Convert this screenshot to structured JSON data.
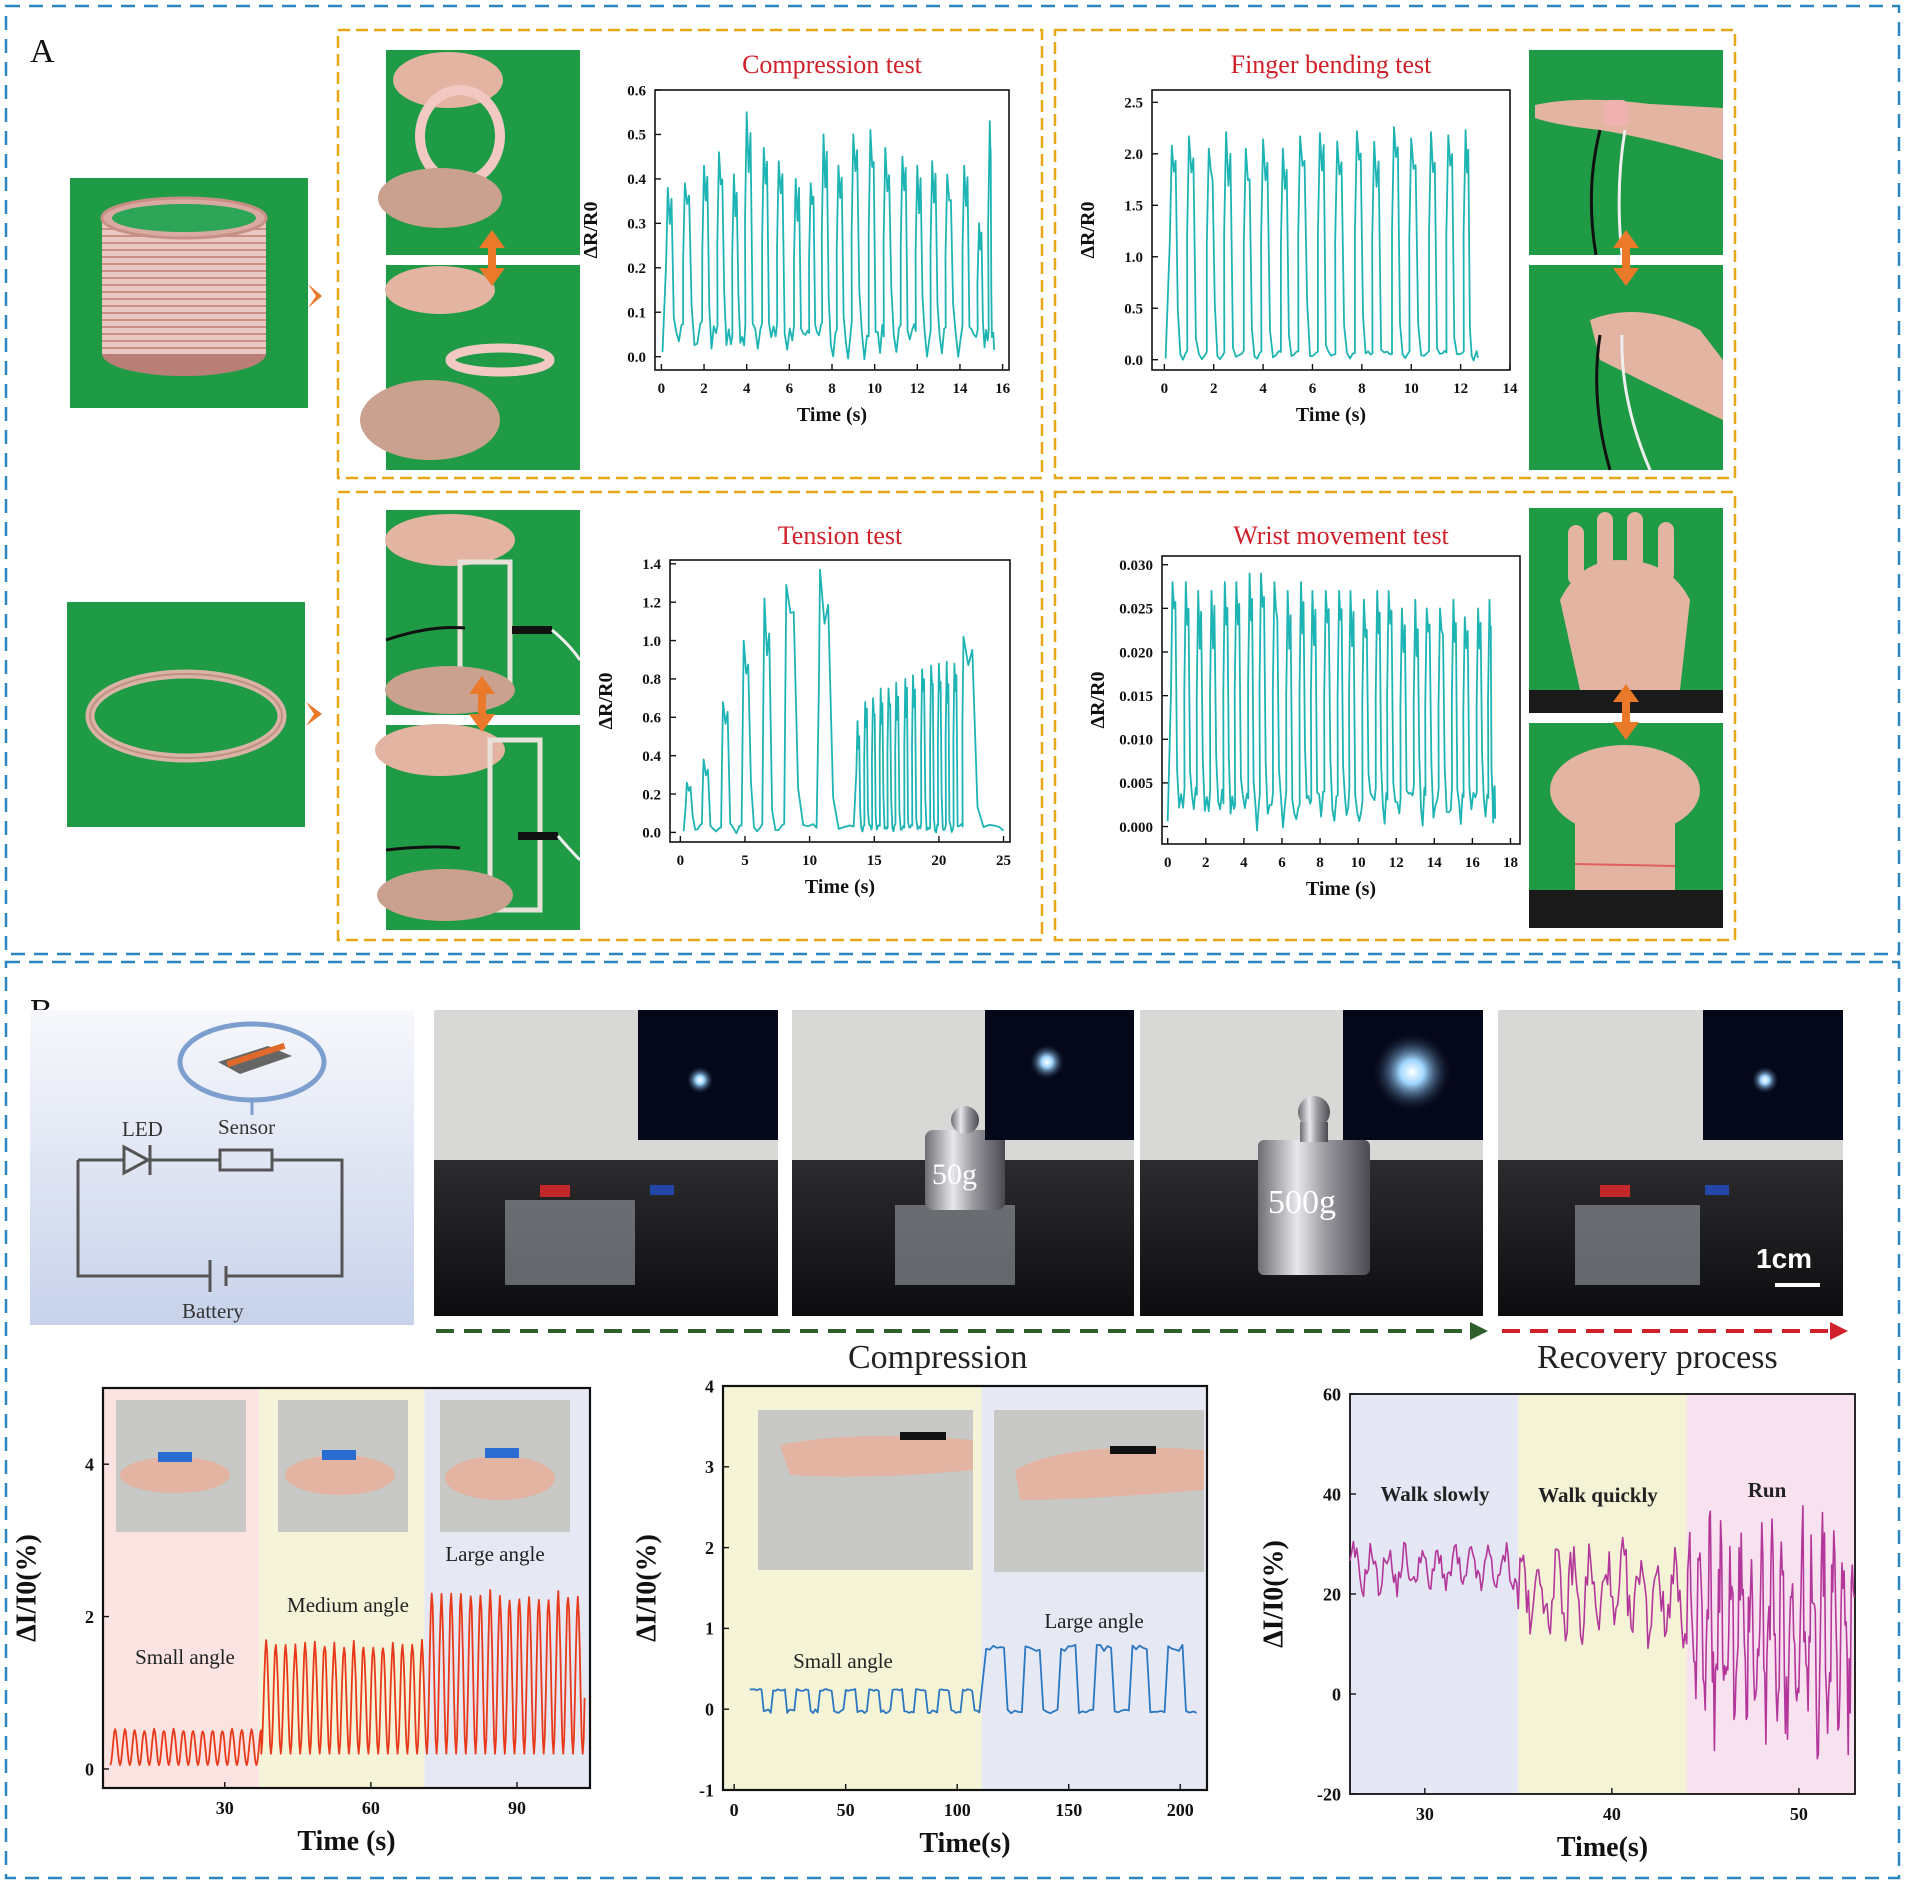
{
  "panels": {
    "a_label": "A",
    "b_label": "B"
  },
  "colors": {
    "panel_border": "#2e86c1",
    "box_border": "#e6a817",
    "title_red": "#d0202a",
    "cyan_line": "#1eb4b4",
    "red_line": "#e83a1a",
    "blue_line": "#2b77c0",
    "magenta_line": "#b3379a",
    "green_screen": "#1f9a45",
    "arrow_orange": "#ea7a2a",
    "skin": "#e2b4a1"
  },
  "circuit": {
    "led": "LED",
    "sensor": "Sensor",
    "battery": "Battery"
  },
  "weights": {
    "w50": "50g",
    "w500": "500g",
    "scale": "1cm"
  },
  "process": {
    "compression": "Compression",
    "recovery": "Recovery process"
  },
  "chart_data": [
    {
      "id": "compression",
      "type": "line",
      "title": "Compression test",
      "xlabel": "Time (s)",
      "ylabel": "ΔR/R0",
      "xlim": [
        -0.3,
        16.3
      ],
      "ylim": [
        -0.03,
        0.6
      ],
      "xticks": [
        0,
        2,
        4,
        6,
        8,
        10,
        12,
        14,
        16
      ],
      "yticks": [
        0.0,
        0.1,
        0.2,
        0.3,
        0.4,
        0.5,
        0.6
      ],
      "xtick_labels": [
        "0",
        "2",
        "4",
        "6",
        "8",
        "10",
        "12",
        "14",
        "16"
      ],
      "ytick_labels": [
        "0.0",
        "0.1",
        "0.2",
        "0.3",
        "0.4",
        "0.5",
        "0.6"
      ],
      "peak_times": [
        0.3,
        1.1,
        2.0,
        2.7,
        3.4,
        4.0,
        4.8,
        5.5,
        6.3,
        7.0,
        7.6,
        8.3,
        9.0,
        9.8,
        10.5,
        11.3,
        12.0,
        12.7,
        13.4,
        14.2,
        14.9,
        15.4
      ],
      "peak_values": [
        0.38,
        0.39,
        0.43,
        0.46,
        0.41,
        0.55,
        0.47,
        0.44,
        0.4,
        0.39,
        0.5,
        0.43,
        0.5,
        0.51,
        0.47,
        0.45,
        0.43,
        0.44,
        0.41,
        0.43,
        0.3,
        0.53
      ],
      "base": 0.05,
      "end_x": 15.6
    },
    {
      "id": "finger",
      "type": "line",
      "title": "Finger bending test",
      "xlabel": "Time (s)",
      "ylabel": "ΔR/R0",
      "xlim": [
        -0.5,
        14.0
      ],
      "ylim": [
        -0.1,
        2.62
      ],
      "xticks": [
        0,
        2,
        4,
        6,
        8,
        10,
        12,
        14
      ],
      "yticks": [
        0.0,
        0.5,
        1.0,
        1.5,
        2.0,
        2.5
      ],
      "xtick_labels": [
        "0",
        "2",
        "4",
        "6",
        "8",
        "10",
        "12",
        "14"
      ],
      "ytick_labels": [
        "0.0",
        "0.5",
        "1.0",
        "1.5",
        "2.0",
        "2.5"
      ],
      "peak_times": [
        0.3,
        1.0,
        1.8,
        2.5,
        3.3,
        4.0,
        4.8,
        5.5,
        6.3,
        7.0,
        7.8,
        8.5,
        9.3,
        10.0,
        10.8,
        11.5,
        12.2
      ],
      "peak_values": [
        2.08,
        2.17,
        2.05,
        2.21,
        2.05,
        2.14,
        2.05,
        2.17,
        2.2,
        2.12,
        2.22,
        2.12,
        2.26,
        2.15,
        2.21,
        2.18,
        2.23
      ],
      "base": 0.06,
      "end_x": 12.7
    },
    {
      "id": "tension",
      "type": "line",
      "title": "Tension test",
      "xlabel": "Time (s)",
      "ylabel": "ΔR/R0",
      "xlim": [
        -0.8,
        25.5
      ],
      "ylim": [
        -0.05,
        1.42
      ],
      "xticks": [
        0,
        5,
        10,
        15,
        20,
        25
      ],
      "yticks": [
        0.0,
        0.2,
        0.4,
        0.6,
        0.8,
        1.0,
        1.2,
        1.4
      ],
      "xtick_labels": [
        "0",
        "5",
        "10",
        "15",
        "20",
        "25"
      ],
      "ytick_labels": [
        "0.0",
        "0.2",
        "0.4",
        "0.6",
        "0.8",
        "1.0",
        "1.2",
        "1.4"
      ],
      "peak_times": [
        0.5,
        1.8,
        3.3,
        4.9,
        6.5,
        8.2,
        10.8,
        13.7,
        14.3,
        14.9,
        15.5,
        16.1,
        16.7,
        17.4,
        18.0,
        18.7,
        19.4,
        20.0,
        20.6,
        21.2,
        21.9
      ],
      "peak_values": [
        0.26,
        0.38,
        0.68,
        1.0,
        1.22,
        1.29,
        1.37,
        0.58,
        0.68,
        0.7,
        0.75,
        0.75,
        0.78,
        0.8,
        0.82,
        0.85,
        0.87,
        0.88,
        0.89,
        0.88,
        1.02
      ],
      "base": 0.03,
      "end_x": 25
    },
    {
      "id": "wrist",
      "type": "line",
      "title": "Wrist movement test",
      "xlabel": "Time (s)",
      "ylabel": "ΔR/R0",
      "xlim": [
        -0.3,
        18.5
      ],
      "ylim": [
        -0.002,
        0.031
      ],
      "xticks": [
        0,
        2,
        4,
        6,
        8,
        10,
        12,
        14,
        16,
        18
      ],
      "yticks": [
        0.0,
        0.005,
        0.01,
        0.015,
        0.02,
        0.025,
        0.03
      ],
      "xtick_labels": [
        "0",
        "2",
        "4",
        "6",
        "8",
        "10",
        "12",
        "14",
        "16",
        "18"
      ],
      "ytick_labels": [
        "0.000",
        "0.005",
        "0.010",
        "0.015",
        "0.020",
        "0.025",
        "0.030"
      ],
      "peak_times": [
        0.25,
        0.95,
        1.6,
        2.3,
        3.0,
        3.6,
        4.3,
        4.9,
        5.6,
        6.3,
        7.0,
        7.6,
        8.3,
        9.0,
        9.6,
        10.3,
        11.0,
        11.6,
        12.3,
        13.0,
        13.6,
        14.3,
        15.0,
        15.6,
        16.3,
        16.9
      ],
      "peak_values": [
        0.028,
        0.028,
        0.027,
        0.027,
        0.028,
        0.028,
        0.029,
        0.029,
        0.028,
        0.027,
        0.028,
        0.027,
        0.027,
        0.027,
        0.027,
        0.026,
        0.027,
        0.027,
        0.025,
        0.026,
        0.025,
        0.025,
        0.026,
        0.024,
        0.025,
        0.026
      ],
      "base": 0.003,
      "end_x": 17.2
    },
    {
      "id": "finger_angle",
      "type": "line",
      "ylabel": "ΔI/I0(%)",
      "xlabel": "Time (s)",
      "xlim": [
        5,
        105
      ],
      "ylim": [
        -0.25,
        5.0
      ],
      "xticks": [
        30,
        60,
        90
      ],
      "yticks": [
        0,
        2,
        4
      ],
      "xtick_labels": [
        "30",
        "60",
        "90"
      ],
      "ytick_labels": [
        "0",
        "2",
        "4"
      ],
      "bands": [
        [
          5,
          37
        ],
        [
          37,
          71
        ],
        [
          71,
          105
        ]
      ],
      "band_labels": [
        "Small angle",
        "Medium angle",
        "Large angle"
      ],
      "segments": [
        {
          "start": 6.5,
          "end": 37.5,
          "period": 2.0,
          "peak": 0.48
        },
        {
          "start": 37.5,
          "end": 71.5,
          "period": 2.0,
          "peak": 1.5
        },
        {
          "start": 71.5,
          "end": 104,
          "period": 2.0,
          "peak": 2.15
        }
      ]
    },
    {
      "id": "wrist_angle",
      "type": "line",
      "ylabel": "ΔI/I0(%)",
      "xlabel": "Time(s)",
      "xlim": [
        -5,
        212
      ],
      "ylim": [
        -1,
        4
      ],
      "xticks": [
        0,
        50,
        100,
        150,
        200
      ],
      "yticks": [
        -1,
        0,
        1,
        2,
        3,
        4
      ],
      "xtick_labels": [
        "0",
        "50",
        "100",
        "150",
        "200"
      ],
      "ytick_labels": [
        "-1",
        "0",
        "1",
        "2",
        "3",
        "4"
      ],
      "bands": [
        [
          -5,
          111
        ],
        [
          111,
          212
        ]
      ],
      "band_labels": [
        "Small angle",
        "Large angle"
      ],
      "segments": [
        {
          "start": 7,
          "end": 110,
          "period": 10.5,
          "peak": 0.25
        },
        {
          "start": 113,
          "end": 208,
          "period": 16,
          "peak": 0.8
        }
      ]
    },
    {
      "id": "walk_run",
      "type": "line",
      "ylabel": "ΔI/I0(%)",
      "xlabel": "Time(s)",
      "xlim": [
        26,
        53
      ],
      "ylim": [
        -20,
        60
      ],
      "xticks": [
        30,
        40,
        50
      ],
      "yticks": [
        -20,
        0,
        20,
        40,
        60
      ],
      "xtick_labels": [
        "30",
        "40",
        "50"
      ],
      "ytick_labels": [
        "-20",
        "0",
        "20",
        "40",
        "60"
      ],
      "bands": [
        [
          26,
          35
        ],
        [
          35,
          44
        ],
        [
          44,
          53
        ]
      ],
      "band_labels": [
        "Walk slowly",
        "Walk quickly",
        "Run"
      ],
      "segments": [
        {
          "start": 26,
          "end": 35,
          "period": 0.9,
          "mid": 25,
          "amp": 3.5
        },
        {
          "start": 35,
          "end": 44,
          "period": 0.9,
          "mid": 20,
          "amp": 7
        },
        {
          "start": 44,
          "end": 53,
          "period": 0.55,
          "mid": 12,
          "amp": 16
        }
      ]
    }
  ]
}
